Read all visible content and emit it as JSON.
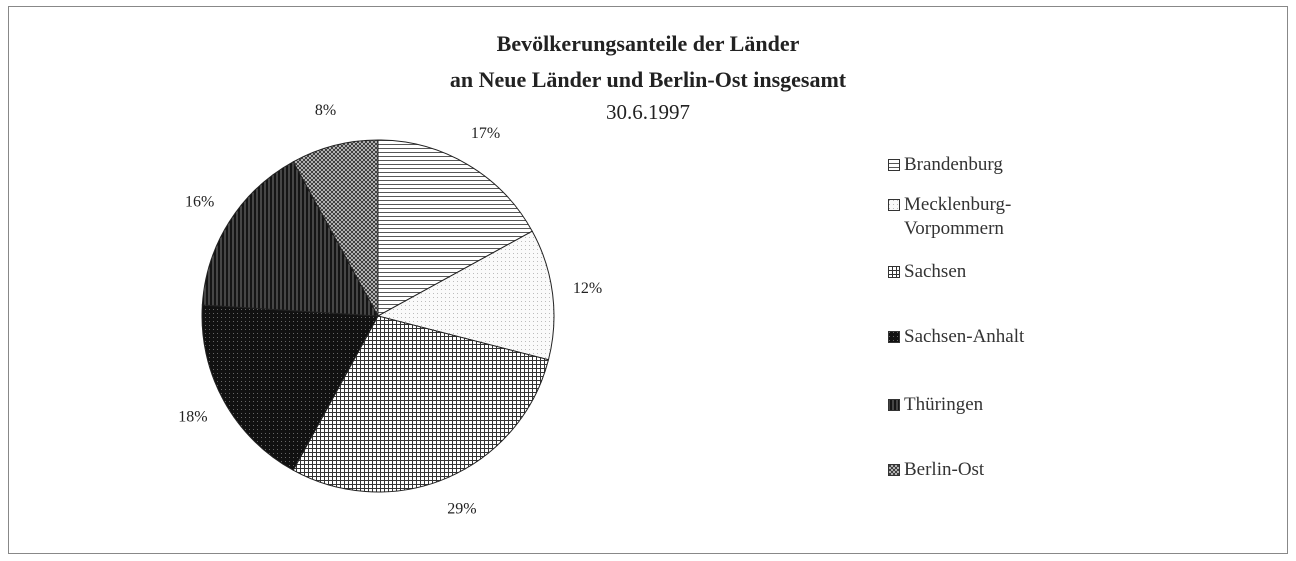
{
  "chart_data": {
    "type": "pie",
    "title": [
      "Bevölkerungsanteile der Länder",
      "an Neue Länder und Berlin-Ost insgesamt"
    ],
    "subtitle": "30.6.1997",
    "categories": [
      "Brandenburg",
      "Mecklenburg-Vorpommern",
      "Sachsen",
      "Sachsen-Anhalt",
      "Thüringen",
      "Berlin-Ost"
    ],
    "values": [
      17,
      12,
      29,
      18,
      16,
      8
    ],
    "value_labels": [
      "17%",
      "12%",
      "29%",
      "18%",
      "16%",
      "8%"
    ],
    "colors": [
      "#444444",
      "#999999",
      "#333333",
      "#111111",
      "#151515",
      "#333333"
    ],
    "legend": "right"
  }
}
